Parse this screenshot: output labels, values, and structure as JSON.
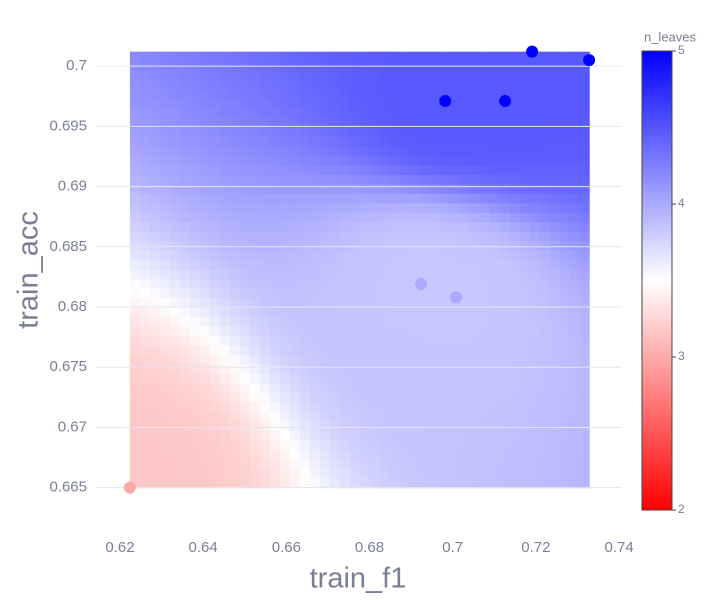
{
  "chart_data": {
    "type": "scatter",
    "x_label": "train_f1",
    "y_label": "train_acc",
    "x": [
      0.6224,
      0.6924,
      0.7008,
      0.6982,
      0.7126,
      0.7191,
      0.7328
    ],
    "y": [
      0.665,
      0.6819,
      0.6808,
      0.6971,
      0.6971,
      0.7012,
      0.7005
    ],
    "color_values": [
      3,
      4,
      4,
      5,
      5,
      5,
      5
    ],
    "color_label": "n_leaves",
    "colorscale": [
      "#ff0000",
      "#ffffff",
      "#0000ff"
    ],
    "clim": [
      2,
      5
    ],
    "cticks": [
      2,
      3,
      4,
      5
    ],
    "xlim": [
      0.614,
      0.7407
    ],
    "ylim": [
      0.6619,
      0.703
    ],
    "xticks": [
      0.62,
      0.64,
      0.66,
      0.68,
      0.7,
      0.72,
      0.74
    ],
    "yticks": [
      0.665,
      0.67,
      0.675,
      0.68,
      0.685,
      0.69,
      0.695,
      0.7
    ],
    "grid": true
  }
}
